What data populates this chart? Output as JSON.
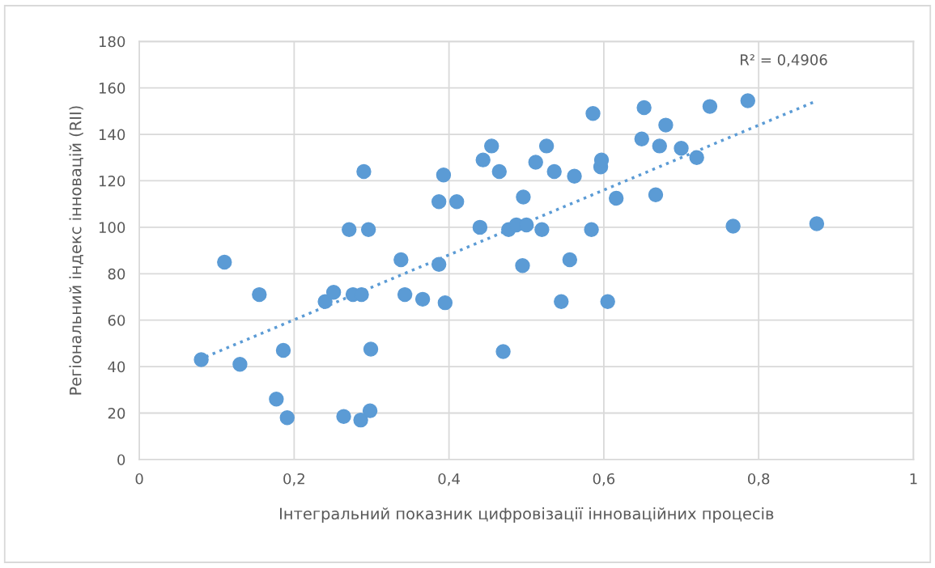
{
  "chart_data": {
    "type": "scatter",
    "xlabel": "Інтегральний показник цифровізації інноваційних процесів",
    "ylabel": "Регіональний індекс інновацій (RII)",
    "series": [
      {
        "marker": "circle",
        "color": "#5b9bd5",
        "x": [
          0.08,
          0.11,
          0.13,
          0.155,
          0.177,
          0.186,
          0.191,
          0.24,
          0.251,
          0.276,
          0.287,
          0.271,
          0.296,
          0.29,
          0.264,
          0.286,
          0.298,
          0.299,
          0.338,
          0.343,
          0.366,
          0.387,
          0.387,
          0.393,
          0.395,
          0.41,
          0.44,
          0.444,
          0.455,
          0.465,
          0.47,
          0.477,
          0.487,
          0.495,
          0.496,
          0.5,
          0.512,
          0.52,
          0.526,
          0.536,
          0.545,
          0.556,
          0.562,
          0.584,
          0.586,
          0.596,
          0.597,
          0.605,
          0.616,
          0.649,
          0.652,
          0.667,
          0.672,
          0.68,
          0.7,
          0.72,
          0.737,
          0.767,
          0.786,
          0.875
        ],
        "values": [
          43,
          85,
          41,
          71,
          26,
          47,
          18,
          68,
          72,
          71,
          71,
          99,
          99,
          124,
          18.5,
          17,
          21,
          47.5,
          86,
          71,
          69,
          84,
          111,
          122.5,
          67.5,
          111,
          100,
          129,
          135,
          124,
          46.5,
          99,
          101,
          83.5,
          113,
          101,
          128,
          99,
          135,
          124,
          68,
          86,
          122,
          99,
          149,
          126,
          129,
          68,
          112.5,
          138,
          151.5,
          114,
          135,
          144,
          134,
          130,
          152,
          100.5,
          154.5,
          101.5
        ]
      },
      {
        "type": "line",
        "marker": "none",
        "color": "#5b9bd5",
        "line_style": "dotted",
        "x": [
          0.077,
          0.872
        ],
        "values": [
          43,
          154
        ]
      }
    ],
    "annotations": [
      "R² = 0,4906"
    ],
    "xlim": [
      0,
      1
    ],
    "xticks": [
      0,
      {
        "value": 0.2,
        "label": "0,2"
      },
      {
        "value": 0.4,
        "label": "0,4"
      },
      {
        "value": 0.6,
        "label": "0,6"
      },
      {
        "value": 0.8,
        "label": "0,8"
      },
      1
    ],
    "ylim": [
      0,
      180
    ],
    "yticks": [
      0,
      20,
      40,
      60,
      80,
      100,
      120,
      140,
      160,
      180
    ],
    "grid": true,
    "legend": false
  }
}
